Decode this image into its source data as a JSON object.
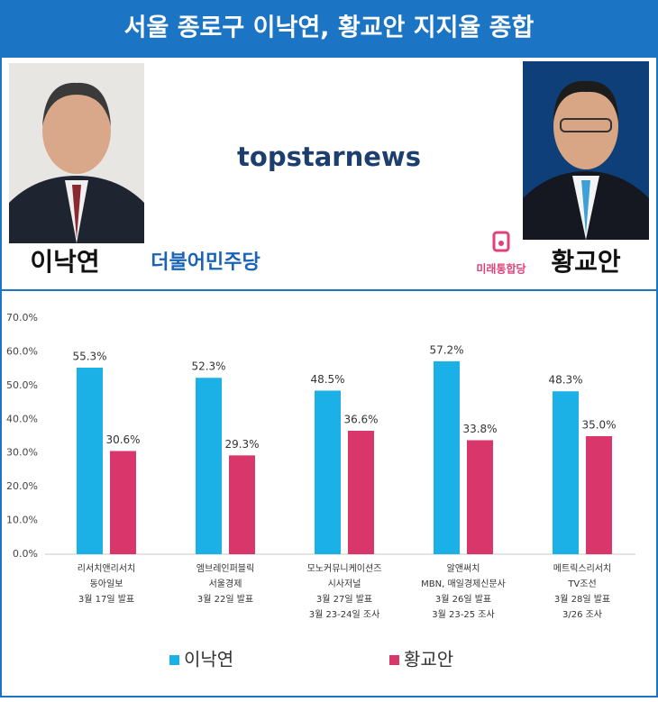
{
  "header": {
    "left_name": "이낙연",
    "right_name": "황교안",
    "left_party": "더불어민주당",
    "right_party": "미래통합당",
    "logo": "topstarnews"
  },
  "chart_data": {
    "type": "bar",
    "title": "서울 종로구 이낙연, 황교안 지지율 종합",
    "categories": [
      [
        "리서치앤리서치",
        "동아일보",
        "3월 17일 발표"
      ],
      [
        "엠브레인퍼블릭",
        "서울경제",
        "3월 22일 발표"
      ],
      [
        "모노커뮤니케이션즈",
        "시사저널",
        "3월 27일 발표",
        "3월 23-24일 조사"
      ],
      [
        "알앤써치",
        "MBN, 매일경제신문사",
        "3월 26일 발표",
        "3월 23-25 조사"
      ],
      [
        "메트릭스리서치",
        "TV조선",
        "3월 28일 발표",
        "3/26 조사"
      ]
    ],
    "series": [
      {
        "name": "이낙연",
        "color": "#1cb1e6",
        "values": [
          55.3,
          52.3,
          48.5,
          57.2,
          48.3
        ],
        "value_labels": [
          "55.3%",
          "52.3%",
          "48.5%",
          "57.2%",
          "48.3%"
        ]
      },
      {
        "name": "황교안",
        "color": "#d9366c",
        "values": [
          30.6,
          29.3,
          36.6,
          33.8,
          35.0
        ],
        "value_labels": [
          "30.6%",
          "29.3%",
          "36.6%",
          "33.8%",
          "35.0%"
        ]
      }
    ],
    "ylim": [
      0,
      70
    ],
    "yticks": [
      {
        "value": 0,
        "label": "0.0%"
      },
      {
        "value": 10,
        "label": "10.0%"
      },
      {
        "value": 20,
        "label": "20.0%"
      },
      {
        "value": 30,
        "label": "30.0%"
      },
      {
        "value": 40,
        "label": "40.0%"
      },
      {
        "value": 50,
        "label": "50.0%"
      },
      {
        "value": 60,
        "label": "60.0%"
      },
      {
        "value": 70,
        "label": "70.0%"
      }
    ],
    "grid": false
  }
}
